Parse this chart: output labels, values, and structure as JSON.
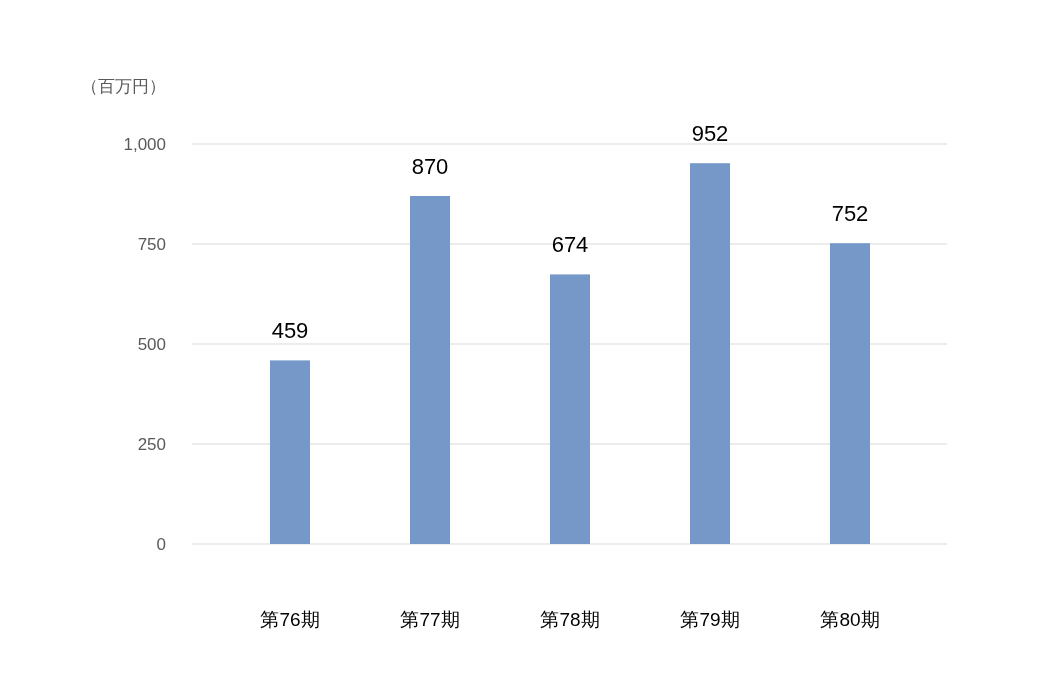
{
  "chart_data": {
    "type": "bar",
    "ylabel": "（百万円）",
    "categories": [
      "第76期",
      "第77期",
      "第78期",
      "第79期",
      "第80期"
    ],
    "values": [
      459,
      870,
      674,
      952,
      752
    ],
    "color": "#7598c8",
    "ylim": [
      0,
      1000
    ],
    "yticks": [
      0,
      250,
      500,
      750,
      {
        "value": 1000,
        "label": "1,000"
      }
    ],
    "grid": "y",
    "data_labels": true
  }
}
